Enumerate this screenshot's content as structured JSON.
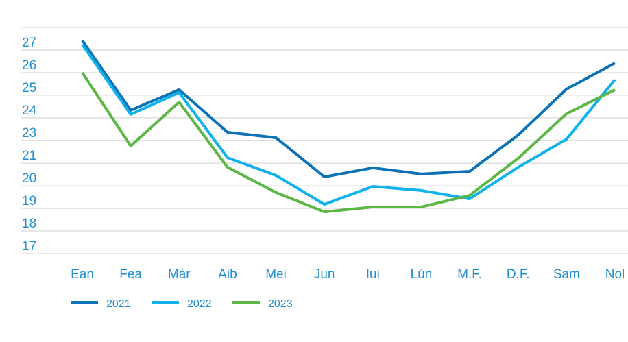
{
  "chart_data": {
    "type": "line",
    "categories": [
      "Ean",
      "Fea",
      "Már",
      "Aib",
      "Mei",
      "Jun",
      "Iui",
      "Lún",
      "M.F.",
      "D.F.",
      "Sam",
      "Nol"
    ],
    "series": [
      {
        "name": "2021",
        "color": "#0a72b5",
        "values": [
          27.47,
          24.04,
          25.05,
          22.96,
          22.69,
          20.77,
          21.21,
          20.91,
          21.04,
          22.82,
          25.08,
          26.36
        ]
      },
      {
        "name": "2022",
        "color": "#0fb2ea",
        "values": [
          27.27,
          23.84,
          24.91,
          21.71,
          20.84,
          19.42,
          20.3,
          20.1,
          19.69,
          21.24,
          22.62,
          25.55
        ]
      },
      {
        "name": "2023",
        "color": "#5cb746",
        "values": [
          25.89,
          22.29,
          24.44,
          21.24,
          20.0,
          19.05,
          19.29,
          19.29,
          19.86,
          21.68,
          23.87,
          25.05
        ]
      }
    ],
    "ylim": [
      17,
      28.11
    ],
    "yticks": [
      17,
      {
        "value": 18.11,
        "label": "18"
      },
      {
        "value": 19.22,
        "label": "19"
      },
      {
        "value": 20.33,
        "label": "20"
      },
      {
        "value": 21.44,
        "label": "21"
      },
      {
        "value": 22.56,
        "label": "23"
      },
      {
        "value": 23.67,
        "label": "24"
      },
      {
        "value": 24.78,
        "label": "25"
      },
      {
        "value": 25.89,
        "label": "26"
      },
      27,
      {
        "value": 28.11,
        "label": ""
      }
    ],
    "grid": true
  }
}
